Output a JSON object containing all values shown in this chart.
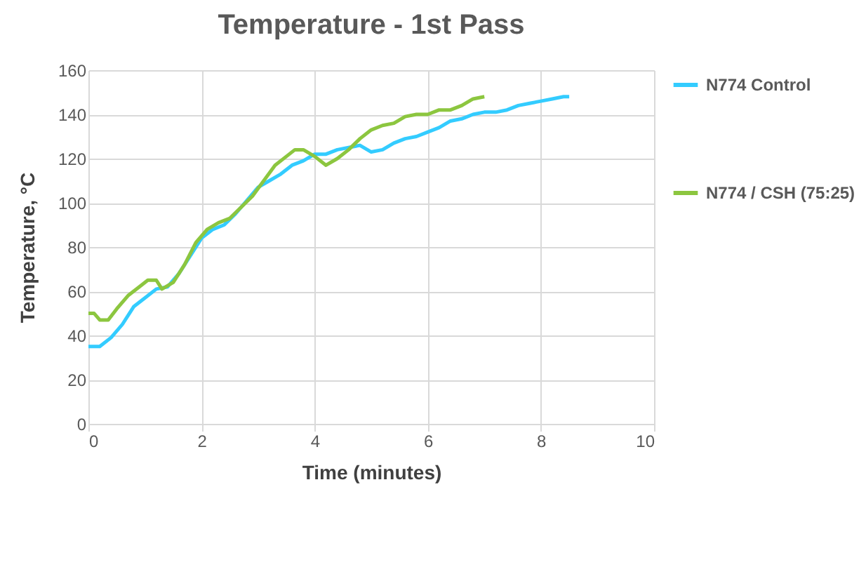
{
  "chart_data": {
    "type": "line",
    "title": "Temperature - 1st Pass",
    "xlabel": "Time (minutes)",
    "ylabel": "Temperature, °C",
    "xlim": [
      0,
      10
    ],
    "xticks": [
      0,
      2,
      4,
      6,
      8,
      10
    ],
    "ylim": [
      0,
      160
    ],
    "yticks": [
      0,
      20,
      40,
      60,
      80,
      100,
      120,
      140,
      160
    ],
    "grid": true,
    "legend": "right",
    "marker": "none",
    "line_style": "solid",
    "series": [
      {
        "name": "N774 Control",
        "color": "#33ccff",
        "x": [
          0,
          0.2,
          0.4,
          0.6,
          0.8,
          1.0,
          1.2,
          1.4,
          1.6,
          1.8,
          2.0,
          2.2,
          2.4,
          2.6,
          2.8,
          3.0,
          3.2,
          3.4,
          3.6,
          3.8,
          4.0,
          4.2,
          4.4,
          4.6,
          4.8,
          5.0,
          5.2,
          5.4,
          5.6,
          5.8,
          6.0,
          6.2,
          6.4,
          6.6,
          6.8,
          7.0,
          7.2,
          7.4,
          7.6,
          7.8,
          8.0,
          8.2,
          8.4,
          8.5
        ],
        "values": [
          35,
          35,
          39,
          45,
          53,
          57,
          61,
          62,
          68,
          76,
          84,
          88,
          90,
          95,
          101,
          107,
          110,
          113,
          117,
          119,
          122,
          122,
          124,
          125,
          126,
          123,
          124,
          127,
          129,
          130,
          132,
          134,
          137,
          138,
          140,
          141,
          141,
          142,
          144,
          145,
          146,
          147,
          148,
          148
        ]
      },
      {
        "name": "N774 / CSH (75:25)",
        "color": "#8cc63f",
        "x": [
          0,
          0.1,
          0.2,
          0.35,
          0.5,
          0.7,
          0.9,
          1.05,
          1.2,
          1.3,
          1.5,
          1.7,
          1.9,
          2.1,
          2.3,
          2.5,
          2.7,
          2.9,
          3.1,
          3.3,
          3.5,
          3.65,
          3.8,
          4.0,
          4.2,
          4.4,
          4.6,
          4.8,
          5.0,
          5.2,
          5.4,
          5.6,
          5.8,
          6.0,
          6.2,
          6.4,
          6.6,
          6.8,
          7.0
        ],
        "values": [
          50,
          50,
          47,
          47,
          52,
          58,
          62,
          65,
          65,
          61,
          64,
          72,
          82,
          88,
          91,
          93,
          98,
          103,
          110,
          117,
          121,
          124,
          124,
          121,
          117,
          120,
          124,
          129,
          133,
          135,
          136,
          139,
          140,
          140,
          142,
          142,
          144,
          147,
          148
        ]
      }
    ]
  }
}
